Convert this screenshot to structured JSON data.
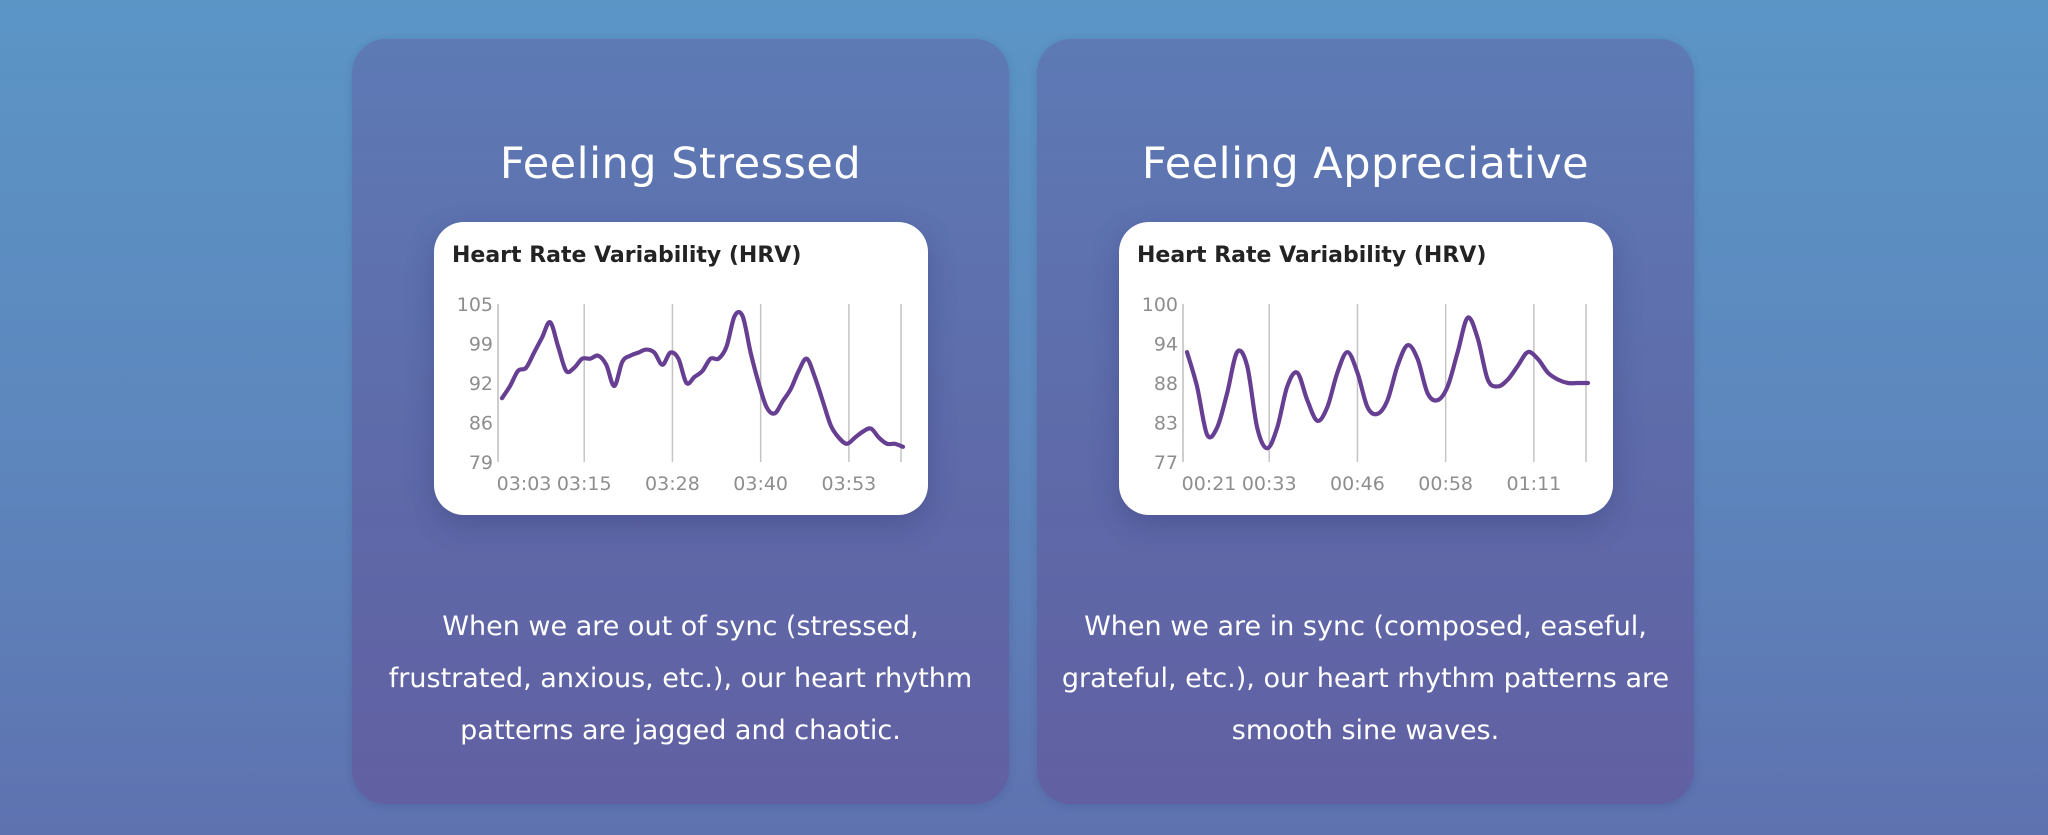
{
  "cards": [
    {
      "heading": "Feeling Stressed",
      "description": "When we are out of sync (stressed, frustrated, anxious, etc.), our heart rhythm patterns are jagged and chaotic."
    },
    {
      "heading": "Feeling Appreciative",
      "description": "When we are in sync (composed, easeful, grateful, etc.), our heart rhythm patterns are smooth sine waves."
    }
  ],
  "chart_data": [
    {
      "type": "line",
      "title": "Heart Rate Variability (HRV)",
      "xlabel": "",
      "ylabel": "",
      "ylim": [
        79,
        105
      ],
      "y_ticks": [
        "105",
        "99",
        "92",
        "86",
        "79"
      ],
      "x_tick_labels": [
        "03:03",
        "03:15",
        "03:28",
        "03:40",
        "03:53"
      ],
      "x_tick_positions": [
        0,
        0.215,
        0.435,
        0.655,
        0.875
      ],
      "series": [
        {
          "name": "HRV",
          "x": [
            0,
            0.02,
            0.04,
            0.06,
            0.08,
            0.1,
            0.12,
            0.14,
            0.16,
            0.18,
            0.2,
            0.22,
            0.24,
            0.26,
            0.28,
            0.3,
            0.32,
            0.34,
            0.36,
            0.38,
            0.4,
            0.42,
            0.44,
            0.46,
            0.48,
            0.5,
            0.52,
            0.54,
            0.56,
            0.58,
            0.6,
            0.62,
            0.64,
            0.66,
            0.68,
            0.7,
            0.72,
            0.74,
            0.76,
            0.78,
            0.8,
            0.82,
            0.84,
            0.86,
            0.88,
            0.9,
            0.92,
            0.94,
            0.96,
            0.98,
            1.0
          ],
          "values": [
            89.5,
            91.5,
            94,
            94.5,
            97,
            99.5,
            102,
            98,
            94,
            94.5,
            96,
            96,
            96.5,
            95,
            91.5,
            95.5,
            96.5,
            97,
            97.5,
            97,
            95,
            97,
            96,
            92,
            93,
            94,
            96,
            96,
            98,
            103,
            103,
            97,
            92,
            88,
            87,
            89,
            91,
            94,
            96,
            93,
            89,
            85,
            83,
            82,
            83,
            84,
            84.5,
            83,
            82,
            82,
            81.5
          ]
        }
      ]
    },
    {
      "type": "line",
      "title": "Heart Rate Variability (HRV)",
      "xlabel": "",
      "ylabel": "",
      "ylim": [
        77,
        100
      ],
      "y_ticks": [
        "100",
        "94",
        "88",
        "83",
        "77"
      ],
      "x_tick_labels": [
        "00:21",
        "00:33",
        "00:46",
        "00:58",
        "01:11"
      ],
      "x_tick_positions": [
        0,
        0.215,
        0.435,
        0.655,
        0.875
      ],
      "series": [
        {
          "name": "HRV",
          "x": [
            0,
            0.025,
            0.05,
            0.075,
            0.1,
            0.125,
            0.15,
            0.175,
            0.2,
            0.225,
            0.25,
            0.275,
            0.3,
            0.325,
            0.35,
            0.375,
            0.4,
            0.425,
            0.45,
            0.475,
            0.5,
            0.525,
            0.55,
            0.575,
            0.6,
            0.625,
            0.65,
            0.675,
            0.7,
            0.725,
            0.75,
            0.775,
            0.8,
            0.825,
            0.85,
            0.875,
            0.9,
            0.925,
            0.95,
            0.975,
            1.0
          ],
          "values": [
            93,
            88,
            81,
            82,
            87,
            93,
            91,
            82,
            79,
            82,
            88,
            90,
            86,
            83,
            85,
            90,
            93,
            90,
            85,
            84,
            86,
            91,
            94,
            92,
            87,
            86,
            88,
            93,
            98,
            95,
            89,
            88,
            89,
            91,
            93,
            92,
            90,
            89,
            88.5,
            88.5,
            88.5
          ]
        }
      ]
    }
  ]
}
